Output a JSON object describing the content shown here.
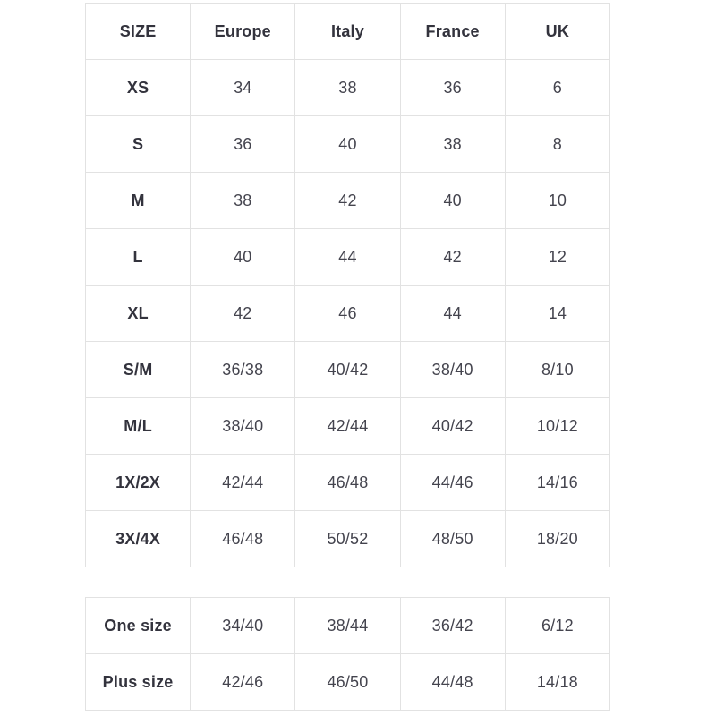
{
  "colors": {
    "background": "#ffffff",
    "border": "#e2e2e2",
    "header_text": "#33333d",
    "data_text": "#44444e"
  },
  "main_table": {
    "headers": [
      "SIZE",
      "Europe",
      "Italy",
      "France",
      "UK"
    ],
    "rows": [
      [
        "XS",
        "34",
        "38",
        "36",
        "6"
      ],
      [
        "S",
        "36",
        "40",
        "38",
        "8"
      ],
      [
        "M",
        "38",
        "42",
        "40",
        "10"
      ],
      [
        "L",
        "40",
        "44",
        "42",
        "12"
      ],
      [
        "XL",
        "42",
        "46",
        "44",
        "14"
      ],
      [
        "S/M",
        "36/38",
        "40/42",
        "38/40",
        "8/10"
      ],
      [
        "M/L",
        "38/40",
        "42/44",
        "40/42",
        "10/12"
      ],
      [
        "1X/2X",
        "42/44",
        "46/48",
        "44/46",
        "14/16"
      ],
      [
        "3X/4X",
        "46/48",
        "50/52",
        "48/50",
        "18/20"
      ]
    ]
  },
  "special_table": {
    "rows": [
      [
        "One size",
        "34/40",
        "38/44",
        "36/42",
        "6/12"
      ],
      [
        "Plus size",
        "42/46",
        "46/50",
        "44/48",
        "14/18"
      ]
    ]
  },
  "chart_data": [
    {
      "type": "table",
      "title": "Clothing size conversion table",
      "columns": [
        "SIZE",
        "Europe",
        "Italy",
        "France",
        "UK"
      ],
      "rows": [
        [
          "XS",
          "34",
          "38",
          "36",
          "6"
        ],
        [
          "S",
          "36",
          "40",
          "38",
          "8"
        ],
        [
          "M",
          "38",
          "42",
          "40",
          "10"
        ],
        [
          "L",
          "40",
          "44",
          "42",
          "12"
        ],
        [
          "XL",
          "42",
          "46",
          "44",
          "14"
        ],
        [
          "S/M",
          "36/38",
          "40/42",
          "38/40",
          "8/10"
        ],
        [
          "M/L",
          "38/40",
          "42/44",
          "40/42",
          "10/12"
        ],
        [
          "1X/2X",
          "42/44",
          "46/48",
          "44/46",
          "14/16"
        ],
        [
          "3X/4X",
          "46/48",
          "50/52",
          "48/50",
          "18/20"
        ]
      ]
    },
    {
      "type": "table",
      "title": "Special sizes (no header row shown)",
      "columns": [
        "SIZE",
        "Europe",
        "Italy",
        "France",
        "UK"
      ],
      "rows": [
        [
          "One size",
          "34/40",
          "38/44",
          "36/42",
          "6/12"
        ],
        [
          "Plus size",
          "42/46",
          "46/50",
          "44/48",
          "14/18"
        ]
      ]
    }
  ]
}
